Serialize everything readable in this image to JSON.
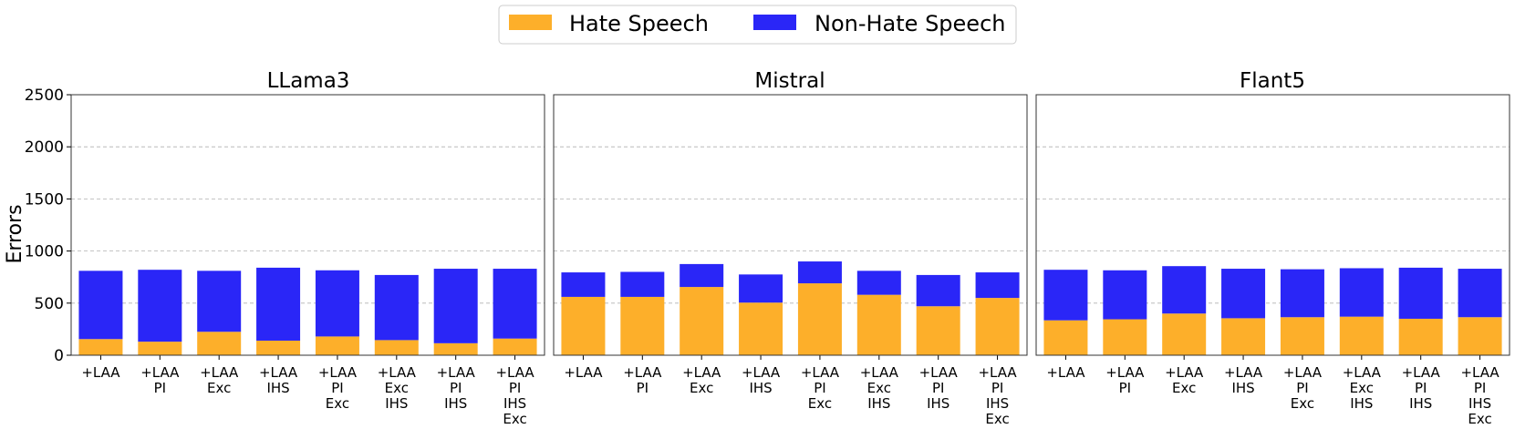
{
  "legend": {
    "placement": "top-center",
    "items": [
      {
        "label": "Hate Speech",
        "color": "#FDAF2A"
      },
      {
        "label": "Non-Hate Speech",
        "color": "#2A26F7"
      }
    ]
  },
  "ylabel": "Errors",
  "chart_data": [
    {
      "type": "bar",
      "stacked": true,
      "title": "LLama3",
      "categories": [
        "+LAA",
        "+LAA\nPI",
        "+LAA\nExc",
        "+LAA\nIHS",
        "+LAA\nPI\nExc",
        "+LAA\nExc\nIHS",
        "+LAA\nPI\nIHS",
        "+LAA\nPI\nIHS\nExc"
      ],
      "series": [
        {
          "name": "Hate Speech",
          "color": "#FDAF2A",
          "values": [
            155,
            130,
            225,
            140,
            180,
            145,
            115,
            160
          ]
        },
        {
          "name": "Non-Hate Speech",
          "color": "#2A26F7",
          "values": [
            655,
            690,
            585,
            700,
            635,
            625,
            715,
            670
          ]
        }
      ],
      "ylim": [
        0,
        2500
      ],
      "yticks": [
        0,
        500,
        1000,
        1500,
        2000,
        2500
      ],
      "grid": true
    },
    {
      "type": "bar",
      "stacked": true,
      "title": "Mistral",
      "categories": [
        "+LAA",
        "+LAA\nPI",
        "+LAA\nExc",
        "+LAA\nIHS",
        "+LAA\nPI\nExc",
        "+LAA\nExc\nIHS",
        "+LAA\nPI\nIHS",
        "+LAA\nPI\nIHS\nExc"
      ],
      "series": [
        {
          "name": "Hate Speech",
          "color": "#FDAF2A",
          "values": [
            560,
            560,
            655,
            505,
            690,
            580,
            470,
            550
          ]
        },
        {
          "name": "Non-Hate Speech",
          "color": "#2A26F7",
          "values": [
            235,
            240,
            220,
            270,
            210,
            230,
            300,
            245
          ]
        }
      ],
      "ylim": [
        0,
        2500
      ],
      "yticks": [
        0,
        500,
        1000,
        1500,
        2000,
        2500
      ],
      "grid": true
    },
    {
      "type": "bar",
      "stacked": true,
      "title": "Flant5",
      "categories": [
        "+LAA",
        "+LAA\nPI",
        "+LAA\nExc",
        "+LAA\nIHS",
        "+LAA\nPI\nExc",
        "+LAA\nExc\nIHS",
        "+LAA\nPI\nIHS",
        "+LAA\nPI\nIHS\nExc"
      ],
      "series": [
        {
          "name": "Hate Speech",
          "color": "#FDAF2A",
          "values": [
            335,
            345,
            400,
            355,
            365,
            370,
            350,
            365
          ]
        },
        {
          "name": "Non-Hate Speech",
          "color": "#2A26F7",
          "values": [
            485,
            470,
            455,
            475,
            460,
            465,
            490,
            465
          ]
        }
      ],
      "ylim": [
        0,
        2500
      ],
      "yticks": [
        0,
        500,
        1000,
        1500,
        2000,
        2500
      ],
      "grid": true
    }
  ]
}
